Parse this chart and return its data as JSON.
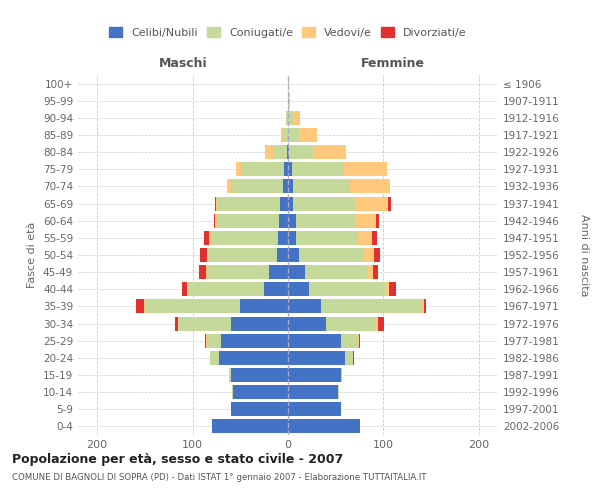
{
  "age_groups": [
    "0-4",
    "5-9",
    "10-14",
    "15-19",
    "20-24",
    "25-29",
    "30-34",
    "35-39",
    "40-44",
    "45-49",
    "50-54",
    "55-59",
    "60-64",
    "65-69",
    "70-74",
    "75-79",
    "80-84",
    "85-89",
    "90-94",
    "95-99",
    "100+"
  ],
  "birth_years": [
    "2002-2006",
    "1997-2001",
    "1992-1996",
    "1987-1991",
    "1982-1986",
    "1977-1981",
    "1972-1976",
    "1967-1971",
    "1962-1966",
    "1957-1961",
    "1952-1956",
    "1947-1951",
    "1942-1946",
    "1937-1941",
    "1932-1936",
    "1927-1931",
    "1922-1926",
    "1917-1921",
    "1912-1916",
    "1907-1911",
    "≤ 1906"
  ],
  "males": {
    "celibi": [
      80,
      60,
      58,
      60,
      72,
      70,
      60,
      50,
      25,
      20,
      12,
      10,
      9,
      8,
      5,
      4,
      1,
      0,
      0,
      0,
      0
    ],
    "coniugati": [
      0,
      0,
      1,
      2,
      10,
      15,
      55,
      100,
      80,
      65,
      72,
      70,
      65,
      65,
      55,
      45,
      15,
      5,
      2,
      0,
      0
    ],
    "vedovi": [
      0,
      0,
      0,
      0,
      0,
      1,
      0,
      1,
      1,
      1,
      1,
      3,
      2,
      2,
      4,
      5,
      8,
      2,
      0,
      0,
      0
    ],
    "divorziati": [
      0,
      0,
      0,
      0,
      0,
      1,
      3,
      8,
      5,
      7,
      7,
      5,
      2,
      2,
      0,
      0,
      0,
      0,
      0,
      0,
      0
    ]
  },
  "females": {
    "nubili": [
      75,
      55,
      52,
      55,
      60,
      55,
      40,
      35,
      22,
      18,
      12,
      8,
      8,
      5,
      5,
      4,
      1,
      0,
      0,
      0,
      0
    ],
    "coniugate": [
      0,
      0,
      1,
      2,
      8,
      18,
      52,
      105,
      80,
      65,
      68,
      65,
      62,
      65,
      60,
      55,
      25,
      12,
      5,
      1,
      0
    ],
    "vedove": [
      0,
      0,
      0,
      0,
      0,
      1,
      2,
      2,
      4,
      6,
      10,
      15,
      22,
      35,
      42,
      45,
      35,
      18,
      8,
      1,
      1
    ],
    "divorziate": [
      0,
      0,
      0,
      0,
      1,
      1,
      7,
      3,
      7,
      5,
      6,
      5,
      3,
      3,
      0,
      0,
      0,
      0,
      0,
      0,
      0
    ]
  },
  "colors": {
    "celibi": "#4472c4",
    "coniugati": "#c5d99b",
    "vedovi": "#ffc87a",
    "divorziati": "#e03030"
  },
  "xlim": 220,
  "title": "Popolazione per età, sesso e stato civile - 2007",
  "subtitle": "COMUNE DI BAGNOLI DI SOPRA (PD) - Dati ISTAT 1° gennaio 2007 - Elaborazione TUTTAITALIA.IT",
  "ylabel_left": "Fasce di età",
  "ylabel_right": "Anni di nascita",
  "xlabel_maschi": "Maschi",
  "xlabel_femmine": "Femmine"
}
